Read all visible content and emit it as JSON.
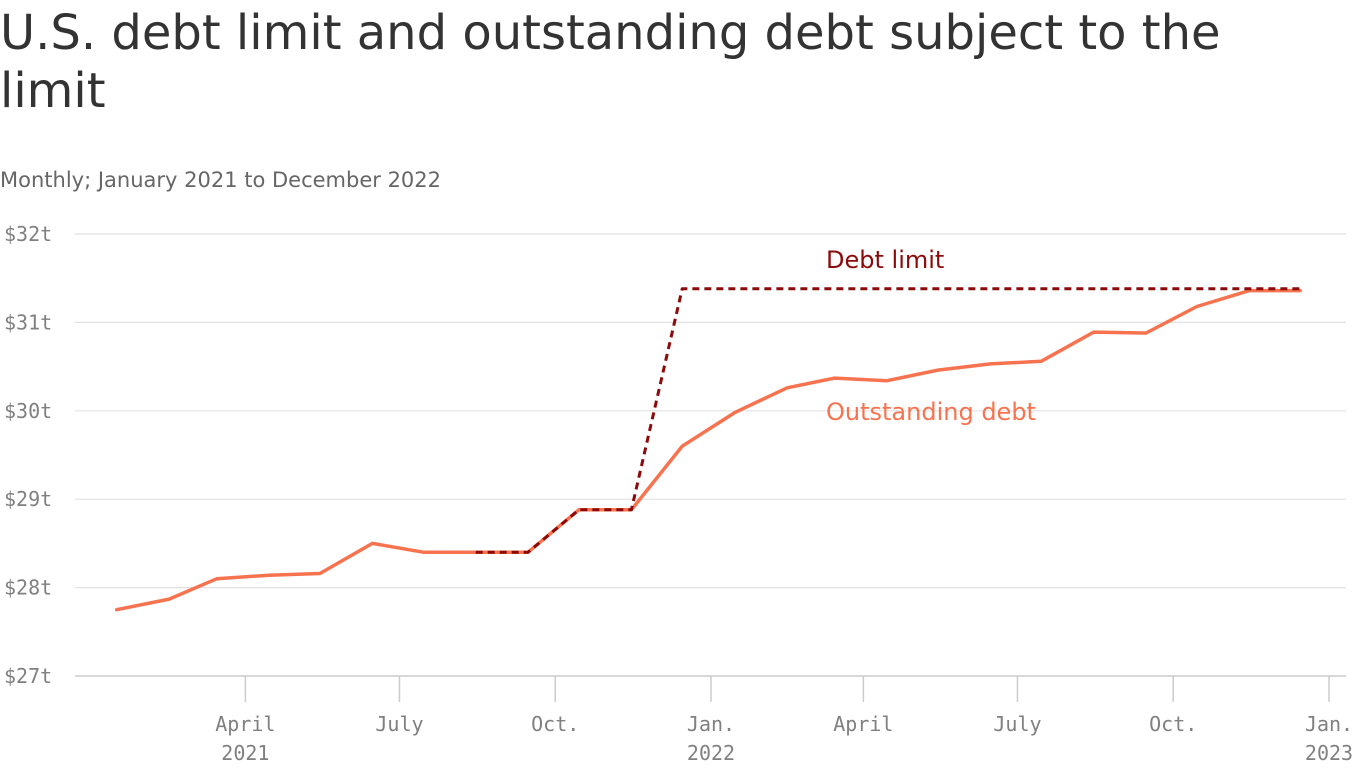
{
  "chart_data": {
    "type": "line",
    "title": "U.S. debt limit and outstanding debt subject to the limit",
    "subtitle": "Monthly; January 2021 to December 2022",
    "xlabel": "",
    "ylabel": "",
    "xlim": [
      "2021-01-01",
      "2023-01-01"
    ],
    "ylim": [
      27,
      32
    ],
    "grid": true,
    "legend": "none",
    "y_ticks": [
      {
        "value": 27,
        "label": "$27t"
      },
      {
        "value": 28,
        "label": "$28t"
      },
      {
        "value": 29,
        "label": "$29t"
      },
      {
        "value": 30,
        "label": "$30t"
      },
      {
        "value": 31,
        "label": "$31t"
      },
      {
        "value": 32,
        "label": "$32t"
      }
    ],
    "x_ticks": [
      {
        "date": "2021-04-01",
        "line1": "April",
        "line2": "2021"
      },
      {
        "date": "2021-07-01",
        "line1": "July",
        "line2": ""
      },
      {
        "date": "2021-10-01",
        "line1": "Oct.",
        "line2": ""
      },
      {
        "date": "2022-01-01",
        "line1": "Jan.",
        "line2": "2022"
      },
      {
        "date": "2022-04-01",
        "line1": "April",
        "line2": ""
      },
      {
        "date": "2022-07-01",
        "line1": "July",
        "line2": ""
      },
      {
        "date": "2022-10-01",
        "line1": "Oct.",
        "line2": ""
      },
      {
        "date": "2023-01-01",
        "line1": "Jan.",
        "line2": "2023"
      }
    ],
    "series": [
      {
        "name": "Outstanding debt",
        "color": "#f7734f",
        "style": "solid",
        "points": [
          {
            "x": "2021-01-15",
            "y": 27.75
          },
          {
            "x": "2021-02-15",
            "y": 27.87
          },
          {
            "x": "2021-03-15",
            "y": 28.1
          },
          {
            "x": "2021-04-15",
            "y": 28.14
          },
          {
            "x": "2021-05-15",
            "y": 28.16
          },
          {
            "x": "2021-06-15",
            "y": 28.5
          },
          {
            "x": "2021-07-15",
            "y": 28.4
          },
          {
            "x": "2021-08-15",
            "y": 28.4
          },
          {
            "x": "2021-09-15",
            "y": 28.4
          },
          {
            "x": "2021-10-15",
            "y": 28.88
          },
          {
            "x": "2021-11-15",
            "y": 28.88
          },
          {
            "x": "2021-12-15",
            "y": 29.6
          },
          {
            "x": "2022-01-15",
            "y": 29.98
          },
          {
            "x": "2022-02-15",
            "y": 30.26
          },
          {
            "x": "2022-03-15",
            "y": 30.37
          },
          {
            "x": "2022-04-15",
            "y": 30.34
          },
          {
            "x": "2022-05-15",
            "y": 30.46
          },
          {
            "x": "2022-06-15",
            "y": 30.53
          },
          {
            "x": "2022-07-15",
            "y": 30.56
          },
          {
            "x": "2022-08-15",
            "y": 30.89
          },
          {
            "x": "2022-09-15",
            "y": 30.88
          },
          {
            "x": "2022-10-15",
            "y": 31.18
          },
          {
            "x": "2022-11-15",
            "y": 31.36
          },
          {
            "x": "2022-12-15",
            "y": 31.36
          }
        ]
      },
      {
        "name": "Debt limit",
        "color": "#8b0a0a",
        "style": "dashed",
        "points": [
          {
            "x": "2021-08-15",
            "y": 28.4
          },
          {
            "x": "2021-09-15",
            "y": 28.4
          },
          {
            "x": "2021-10-15",
            "y": 28.88
          },
          {
            "x": "2021-11-15",
            "y": 28.88
          },
          {
            "x": "2021-12-15",
            "y": 31.38
          },
          {
            "x": "2022-12-15",
            "y": 31.38
          }
        ]
      }
    ]
  }
}
